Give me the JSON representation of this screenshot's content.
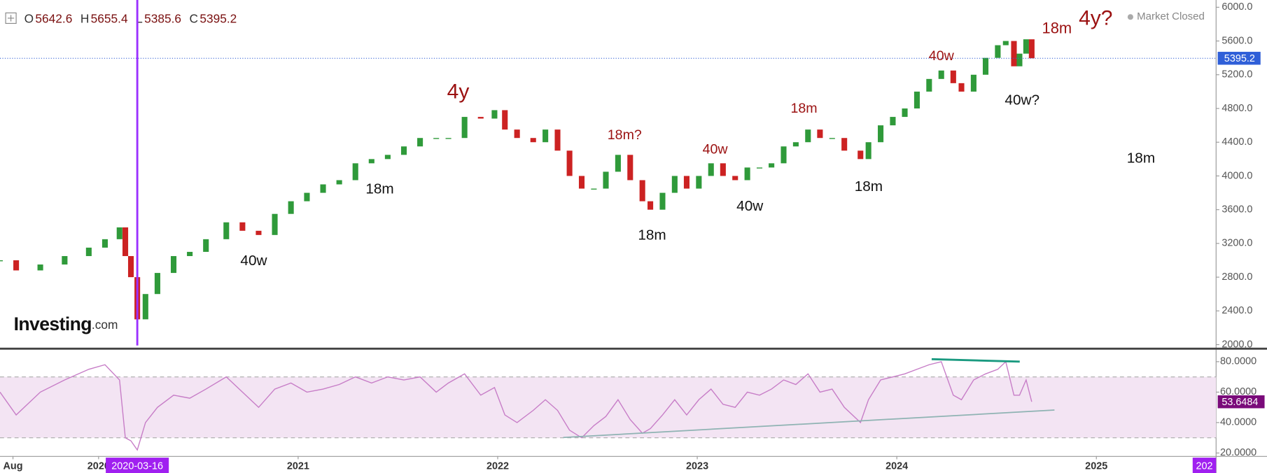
{
  "chart_data": [
    {
      "type": "candlestick",
      "x": [
        2019.506,
        2019.587,
        2019.708,
        2019.83,
        2019.951,
        2020.032,
        2020.105,
        2020.134,
        2020.162,
        2020.194,
        2020.235,
        2020.295,
        2020.376,
        2020.457,
        2020.538,
        2020.64,
        2020.721,
        2020.802,
        2020.883,
        2020.964,
        2021.044,
        2021.125,
        2021.206,
        2021.287,
        2021.368,
        2021.449,
        2021.53,
        2021.611,
        2021.692,
        2021.753,
        2021.834,
        2021.915,
        2021.984,
        2022.036,
        2022.097,
        2022.178,
        2022.239,
        2022.3,
        2022.36,
        2022.421,
        2022.482,
        2022.542,
        2022.603,
        2022.664,
        2022.725,
        2022.765,
        2022.826,
        2022.887,
        2022.947,
        2023.008,
        2023.069,
        2023.129,
        2023.19,
        2023.251,
        2023.312,
        2023.372,
        2023.433,
        2023.494,
        2023.555,
        2023.615,
        2023.676,
        2023.737,
        2023.818,
        2023.858,
        2023.919,
        2023.98,
        2024.04,
        2024.101,
        2024.162,
        2024.223,
        2024.283,
        2024.324,
        2024.385,
        2024.445,
        2024.506,
        2024.546,
        2024.587,
        2024.615,
        2024.648,
        2024.676
      ],
      "values": [
        3000,
        2880,
        2950,
        3050,
        3150,
        3250,
        3390,
        3050,
        2800,
        2300,
        2600,
        2850,
        3050,
        3100,
        3250,
        3450,
        3350,
        3300,
        3550,
        3700,
        3800,
        3900,
        3950,
        4150,
        4200,
        4250,
        4350,
        4450,
        4450,
        4450,
        4700,
        4680,
        4780,
        4550,
        4450,
        4400,
        4550,
        4300,
        4000,
        3850,
        3850,
        4050,
        4250,
        3950,
        3700,
        3600,
        3800,
        4000,
        3850,
        4000,
        4150,
        4000,
        3950,
        4100,
        4100,
        4150,
        4350,
        4400,
        4550,
        4450,
        4450,
        4300,
        4200,
        4400,
        4600,
        4700,
        4800,
        5000,
        5150,
        5250,
        5100,
        5000,
        5200,
        5400,
        5550,
        5600,
        5300,
        5450,
        5620,
        5395.2
      ],
      "up_color": "#2f9a3a",
      "down_color": "#cc2222",
      "xlim": [
        2019.506,
        2025.6
      ],
      "xticks": [
        {
          "value": 2019.571,
          "label": "Aug"
        },
        2020,
        2021,
        2022,
        2023,
        2024,
        2025
      ],
      "x_markers": [
        {
          "value": 2020.194,
          "label": "2020-03-16"
        },
        {
          "value": 2025.559,
          "label": "202"
        }
      ],
      "ylim": [
        1971,
        6086
      ],
      "yticks": [
        {
          "value": 2000,
          "label": "2000.0"
        },
        {
          "value": 2400,
          "label": "2400.0"
        },
        {
          "value": 2800,
          "label": "2800.0"
        },
        {
          "value": 3200,
          "label": "3200.0"
        },
        {
          "value": 3600,
          "label": "3600.0"
        },
        {
          "value": 4000,
          "label": "4000.0"
        },
        {
          "value": 4400,
          "label": "4400.0"
        },
        {
          "value": 4800,
          "label": "4800.0"
        },
        {
          "value": 5200,
          "label": "5200.0"
        },
        {
          "value": 5600,
          "label": "5600.0"
        },
        {
          "value": 6000,
          "label": "6000.0"
        }
      ],
      "grid": false,
      "ohlc": [
        {
          "label": "O",
          "value": 5642.6
        },
        {
          "label": "H",
          "value": 5655.4
        },
        {
          "label": "L",
          "value": 5385.6
        },
        {
          "label": "C",
          "value": 5395.2
        }
      ],
      "market_status": "Market Closed",
      "logo": {
        "name": "Investing",
        "domain": ".com"
      },
      "annotations": [
        {
          "text": "40w",
          "color": "#111111"
        },
        {
          "text": "18m",
          "color": "#111111"
        },
        {
          "text": "4y",
          "color": "#9b1111"
        },
        {
          "text": "18m?",
          "color": "#9b1111"
        },
        {
          "text": "18m",
          "color": "#111111"
        },
        {
          "text": "40w",
          "color": "#9b1111"
        },
        {
          "text": "40w",
          "color": "#111111"
        },
        {
          "text": "18m",
          "color": "#9b1111"
        },
        {
          "text": "18m",
          "color": "#111111"
        },
        {
          "text": "40w",
          "color": "#9b1111"
        },
        {
          "text": "40w?",
          "color": "#111111"
        },
        {
          "text": "18m",
          "color": "#9b1111"
        },
        {
          "text": "4y?",
          "color": "#9b1111"
        },
        {
          "text": "18m",
          "color": "#111111"
        }
      ]
    },
    {
      "type": "line",
      "values": [
        60,
        45,
        60,
        68,
        75,
        78,
        68,
        30,
        28,
        22,
        40,
        50,
        58,
        56,
        62,
        70,
        60,
        50,
        62,
        66,
        60,
        62,
        65,
        70,
        66,
        70,
        68,
        70,
        60,
        66,
        72,
        58,
        63,
        45,
        40,
        48,
        55,
        48,
        35,
        30,
        38,
        44,
        55,
        42,
        33,
        36,
        45,
        55,
        45,
        55,
        62,
        52,
        50,
        60,
        58,
        62,
        68,
        65,
        72,
        60,
        62,
        50,
        40,
        55,
        68,
        70,
        72,
        75,
        78,
        80,
        58,
        55,
        68,
        72,
        75,
        80,
        58,
        58,
        68,
        53.6484
      ],
      "color": "#c77dc7",
      "ylim": [
        18,
        88
      ],
      "yticks": [
        {
          "value": 20,
          "label": "20.0000"
        },
        {
          "value": 40,
          "label": "40.0000"
        },
        {
          "value": 60,
          "label": "60.0000"
        },
        {
          "value": 80,
          "label": "80.0000"
        }
      ],
      "bands": [
        30,
        70
      ],
      "band_color": "#f3e4f3"
    }
  ]
}
